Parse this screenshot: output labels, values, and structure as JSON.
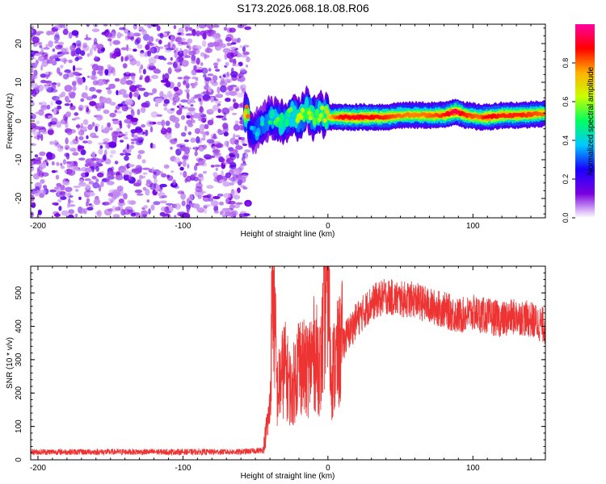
{
  "title": "S173.2026.068.18.08.R06",
  "chart_data": [
    {
      "type": "heatmap",
      "name": "spectrogram",
      "xlabel": "Height of straight line (km)",
      "ylabel": "Frequency (Hz)",
      "xlim": [
        -205,
        150
      ],
      "ylim": [
        -25,
        25
      ],
      "xticks": [
        -200,
        -100,
        0,
        100
      ],
      "yticks": [
        -20,
        -10,
        0,
        10,
        20
      ],
      "colorbar": {
        "label": "Normalized spectral amplitude",
        "range": [
          0,
          1
        ],
        "ticks": [
          0.0,
          0.2,
          0.4,
          0.6,
          0.8
        ],
        "tick_labels": [
          "0.0",
          "0.2",
          "0.4",
          "0.6",
          "0.8"
        ],
        "colors": [
          "#ffffff",
          "#7b00e0",
          "#1a00ff",
          "#00c8ff",
          "#00ff60",
          "#c8ff00",
          "#ffb000",
          "#ff0000",
          "#ff00a0"
        ]
      },
      "noise_region": {
        "x_range": [
          -205,
          -55
        ],
        "freq_range": [
          -25,
          25
        ],
        "amplitude": 0.15
      },
      "signal_track": [
        {
          "x": -55,
          "f": -2,
          "a": 0.35
        },
        {
          "x": -50,
          "f": -3,
          "a": 0.4
        },
        {
          "x": -45,
          "f": -1,
          "a": 0.45
        },
        {
          "x": -40,
          "f": 1,
          "a": 0.5
        },
        {
          "x": -35,
          "f": 0,
          "a": 0.55
        },
        {
          "x": -30,
          "f": -1,
          "a": 0.6
        },
        {
          "x": -25,
          "f": 2,
          "a": 0.55
        },
        {
          "x": -20,
          "f": 0,
          "a": 0.65
        },
        {
          "x": -15,
          "f": 3,
          "a": 0.6
        },
        {
          "x": -10,
          "f": 1,
          "a": 0.65
        },
        {
          "x": -5,
          "f": 2,
          "a": 0.6
        },
        {
          "x": 0,
          "f": 1,
          "a": 0.7
        },
        {
          "x": 5,
          "f": 1,
          "a": 0.8
        },
        {
          "x": 10,
          "f": 1,
          "a": 0.88
        },
        {
          "x": 20,
          "f": 1,
          "a": 0.9
        },
        {
          "x": 30,
          "f": 1,
          "a": 0.88
        },
        {
          "x": 40,
          "f": 1,
          "a": 0.85
        },
        {
          "x": 50,
          "f": 1.5,
          "a": 0.8
        },
        {
          "x": 60,
          "f": 1.5,
          "a": 0.78
        },
        {
          "x": 70,
          "f": 1.5,
          "a": 0.8
        },
        {
          "x": 80,
          "f": 1.5,
          "a": 0.85
        },
        {
          "x": 88,
          "f": 2.5,
          "a": 0.95
        },
        {
          "x": 95,
          "f": 1.5,
          "a": 0.85
        },
        {
          "x": 105,
          "f": 1,
          "a": 0.8
        },
        {
          "x": 110,
          "f": 1,
          "a": 0.9
        },
        {
          "x": 120,
          "f": 1.5,
          "a": 0.85
        },
        {
          "x": 135,
          "f": 1.5,
          "a": 0.85
        },
        {
          "x": 150,
          "f": 2,
          "a": 0.8
        }
      ]
    },
    {
      "type": "line",
      "name": "snr",
      "xlabel": "Height of straight line (km)",
      "ylabel": "SNR (10 * v/v)",
      "xlim": [
        -205,
        150
      ],
      "ylim": [
        0,
        580
      ],
      "xticks": [
        -200,
        -100,
        0,
        100
      ],
      "yticks": [
        0,
        100,
        200,
        300,
        400,
        500
      ],
      "line_color": "#ee3333",
      "series": [
        {
          "name": "SNR envelope",
          "points": [
            [
              -205,
              20
            ],
            [
              -60,
              20
            ],
            [
              -45,
              25
            ],
            [
              -40,
              150
            ],
            [
              -38,
              580
            ],
            [
              -35,
              200
            ],
            [
              -30,
              280
            ],
            [
              -25,
              200
            ],
            [
              -20,
              300
            ],
            [
              -15,
              260
            ],
            [
              -10,
              320
            ],
            [
              -5,
              280
            ],
            [
              0,
              580
            ],
            [
              2,
              250
            ],
            [
              10,
              350
            ],
            [
              20,
              420
            ],
            [
              30,
              470
            ],
            [
              40,
              490
            ],
            [
              50,
              480
            ],
            [
              60,
              480
            ],
            [
              70,
              460
            ],
            [
              80,
              450
            ],
            [
              90,
              430
            ],
            [
              100,
              440
            ],
            [
              110,
              430
            ],
            [
              120,
              420
            ],
            [
              130,
              430
            ],
            [
              140,
              420
            ],
            [
              150,
              400
            ]
          ]
        }
      ]
    }
  ]
}
